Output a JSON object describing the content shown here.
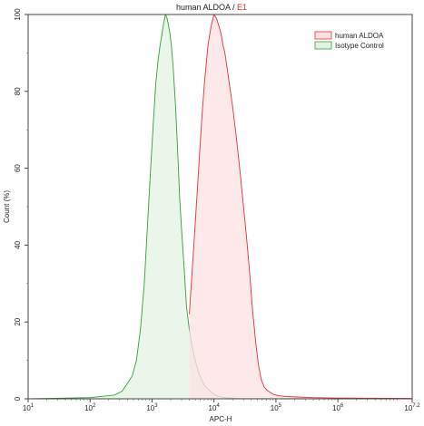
{
  "chart_data": {
    "type": "area",
    "title_main": "human ALDOA / ",
    "title_accent": "E1",
    "title_accent_color": "#d62728",
    "xlabel": "APC-H",
    "ylabel": "Count (%)",
    "x_scale": "log10",
    "xlim": [
      10,
      15848932
    ],
    "ylim": [
      0,
      100
    ],
    "x_ticks": [
      {
        "value": 10,
        "base": "10",
        "exp": "1"
      },
      {
        "value": 100,
        "base": "10",
        "exp": "2"
      },
      {
        "value": 1000,
        "base": "10",
        "exp": "3"
      },
      {
        "value": 10000,
        "base": "10",
        "exp": "4"
      },
      {
        "value": 100000,
        "base": "10",
        "exp": "5"
      },
      {
        "value": 1000000,
        "base": "10",
        "exp": "6"
      },
      {
        "value": 15848932,
        "base": "10",
        "exp": "7.2"
      }
    ],
    "y_ticks": [
      0,
      20,
      40,
      60,
      80,
      100
    ],
    "legend_position": "top-right",
    "series": [
      {
        "name": "human ALDOA",
        "stroke": "#e0303a",
        "fill": "#fde2e3",
        "x": [
          4000,
          5000,
          6300,
          7000,
          8000,
          9000,
          10000,
          11000,
          12000,
          13000,
          14000,
          15000,
          17000,
          20000,
          23000,
          26000,
          30000,
          34000,
          38000,
          42000,
          47000,
          52000,
          58000,
          65000,
          75000,
          90000,
          110000,
          140000,
          200000,
          400000,
          1000000,
          15848932
        ],
        "y": [
          22,
          46,
          72,
          82,
          92,
          97,
          100,
          99,
          97,
          95,
          92,
          90,
          84,
          76,
          68,
          60,
          50,
          41,
          32,
          23,
          15,
          9,
          5,
          3,
          2,
          1.2,
          0.8,
          0.6,
          0.5,
          0.3,
          0.2,
          0.1
        ]
      },
      {
        "name": "Isotype Control",
        "stroke": "#3a9a3a",
        "fill": "#e3f3e3",
        "x": [
          10,
          100,
          250,
          330,
          400,
          480,
          560,
          650,
          750,
          850,
          950,
          1050,
          1150,
          1250,
          1350,
          1450,
          1550,
          1650,
          1750,
          1850,
          1950,
          2050,
          2200,
          2400,
          2600,
          2800,
          3000,
          3300,
          3600,
          4000,
          4500,
          5000,
          5600,
          6300,
          7000,
          8000,
          9000,
          10000,
          11000,
          13000,
          15000,
          18000,
          25000,
          15848932
        ],
        "y": [
          0,
          0.3,
          1,
          2,
          4,
          6,
          10,
          18,
          30,
          46,
          60,
          72,
          82,
          88,
          92,
          95,
          98,
          100,
          99,
          97,
          95,
          92,
          86,
          76,
          64,
          52,
          44,
          34,
          24,
          18,
          13,
          10,
          7,
          5,
          3.5,
          2.5,
          1.8,
          1.2,
          0.8,
          0.5,
          0.3,
          0.2,
          0.1,
          0
        ]
      }
    ]
  }
}
